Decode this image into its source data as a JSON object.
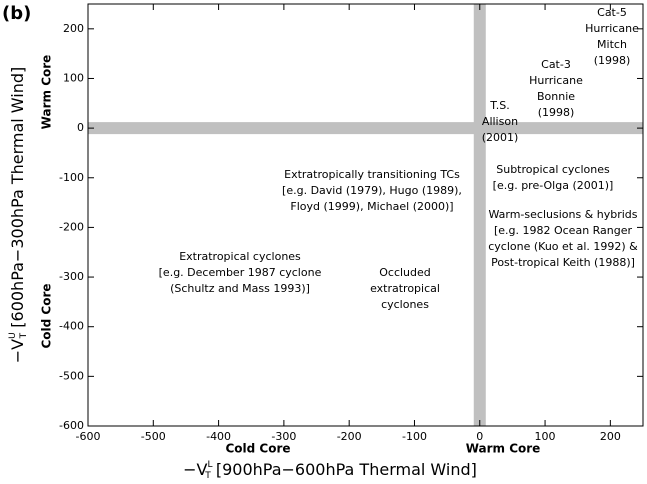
{
  "chart_data": {
    "type": "phase-space",
    "panel_label": "(b)",
    "xlabel": {
      "prefix": "−V",
      "sub": "T",
      "sup": "L",
      "text": " [900hPa−600hPa Thermal Wind]"
    },
    "ylabel": {
      "prefix": "−V",
      "sub": "T",
      "sup": "U",
      "text": " [600hPa−300hPa Thermal Wind]"
    },
    "y_side_labels": [
      "Warm Core",
      "Cold Core"
    ],
    "x_side_labels": [
      "Cold Core",
      "Warm Core"
    ],
    "xlim": [
      -600,
      250
    ],
    "ylim": [
      -600,
      250
    ],
    "xticks": [
      -600,
      -500,
      -400,
      -300,
      -200,
      -100,
      0,
      100,
      200
    ],
    "yticks": [
      -600,
      -500,
      -400,
      -300,
      -200,
      -100,
      0,
      100,
      200
    ],
    "vlines": [
      0
    ],
    "hlines": [
      0
    ],
    "line_color": "#c0c0c0",
    "annotations": [
      [
        "Cat-5",
        "Hurricane",
        "Mitch",
        "(1998)"
      ],
      [
        "Cat-3",
        "Hurricane",
        "Bonnie",
        "(1998)"
      ],
      [
        "T.S.",
        "Allison",
        "(2001)"
      ],
      [
        "Extratropically transitioning TCs",
        "[e.g. David (1979), Hugo (1989),",
        "Floyd (1999), Michael (2000)]"
      ],
      [
        "Subtropical cyclones",
        "[e.g. pre-Olga (2001)]"
      ],
      [
        "Warm-seclusions & hybrids",
        "[e.g. 1982 Ocean Ranger",
        "cyclone (Kuo et al. 1992) &",
        "Post-tropical Keith (1988)]"
      ],
      [
        "Extratropical cyclones",
        "[e.g. December 1987 cyclone",
        "(Schultz and Mass 1993)]"
      ],
      [
        "Occluded",
        "extratropical",
        "cyclones"
      ]
    ]
  }
}
